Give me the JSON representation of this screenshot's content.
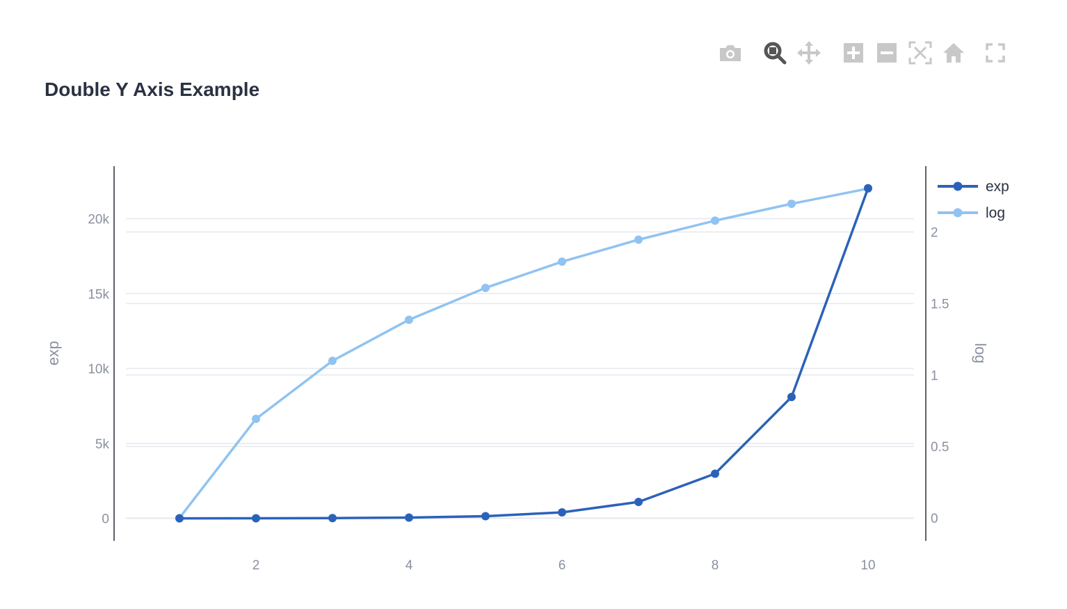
{
  "modebar": {
    "buttons": [
      {
        "icon": "camera-icon",
        "label": "Download plot as a png"
      },
      {
        "icon": "zoom-icon",
        "label": "Zoom",
        "active": true
      },
      {
        "icon": "pan-icon",
        "label": "Pan"
      },
      {
        "icon": "zoom-in-icon",
        "label": "Zoom in"
      },
      {
        "icon": "zoom-out-icon",
        "label": "Zoom out"
      },
      {
        "icon": "autoscale-icon",
        "label": "Autoscale"
      },
      {
        "icon": "home-icon",
        "label": "Reset axes"
      },
      {
        "icon": "fullscreen-icon",
        "label": "Fullscreen"
      }
    ],
    "color": "#c8c8c8",
    "active_color": "#555555"
  },
  "chart_data": {
    "type": "line",
    "title": "Double Y Axis Example",
    "x": [
      1,
      2,
      3,
      4,
      5,
      6,
      7,
      8,
      9,
      10
    ],
    "xlim": [
      0.3,
      10.6
    ],
    "xticks": [
      "2",
      "4",
      "6",
      "8",
      "10"
    ],
    "y1": {
      "label": "exp",
      "ylim": [
        -1500,
        23500
      ],
      "ticks": [
        "0",
        "5k",
        "10k",
        "15k",
        "20k"
      ]
    },
    "y2": {
      "label": "log",
      "ylim": [
        -0.16,
        2.46
      ],
      "ticks": [
        "0",
        "0.5",
        "1",
        "1.5",
        "2"
      ]
    },
    "series": [
      {
        "name": "exp",
        "axis": "y1",
        "color": "#2b62b9",
        "values": [
          2.7,
          7.4,
          20.1,
          54.6,
          148.4,
          403.4,
          1096.6,
          2981.0,
          8103.1,
          22026.5
        ]
      },
      {
        "name": "log",
        "axis": "y2",
        "color": "#90c3f1",
        "values": [
          0,
          0.693,
          1.099,
          1.386,
          1.609,
          1.792,
          1.946,
          2.079,
          2.197,
          2.303
        ]
      }
    ],
    "grid": true,
    "legend": "top-right"
  }
}
